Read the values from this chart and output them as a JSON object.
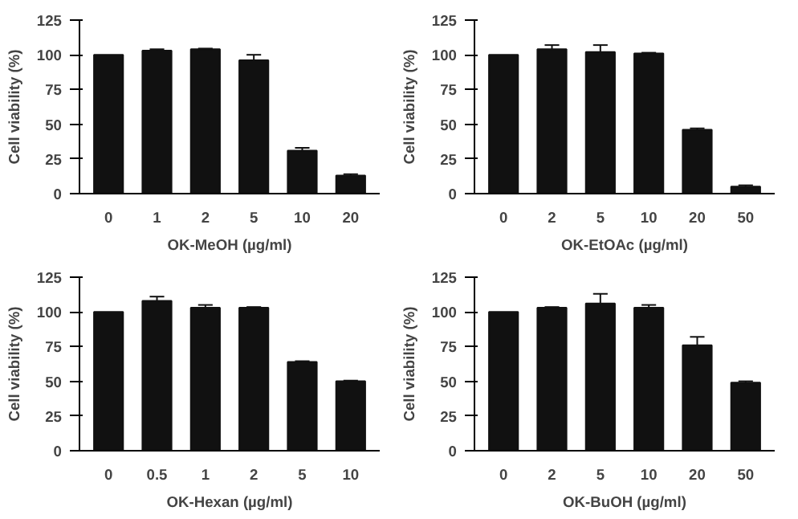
{
  "chart_data": [
    {
      "type": "bar",
      "xlabel": "OK-MeOH (µg/ml)",
      "ylabel": "Cell viability (%)",
      "categories": [
        "0",
        "1",
        "2",
        "5",
        "10",
        "20"
      ],
      "values": [
        100,
        103,
        104,
        96,
        31,
        13
      ],
      "errors": [
        null,
        [
          103,
          104
        ],
        [
          104,
          104.5
        ],
        [
          96,
          100
        ],
        [
          31,
          33
        ],
        [
          13,
          14
        ]
      ],
      "color": "#111111",
      "ylim": [
        0,
        125
      ],
      "yticks": [
        0,
        25,
        50,
        75,
        100,
        125
      ]
    },
    {
      "type": "bar",
      "xlabel": "OK-EtOAc (µg/ml)",
      "ylabel": "Cell viability (%)",
      "categories": [
        "0",
        "2",
        "5",
        "10",
        "20",
        "50"
      ],
      "values": [
        100,
        104,
        102,
        101,
        46,
        5
      ],
      "errors": [
        null,
        [
          104,
          107
        ],
        [
          102,
          107
        ],
        [
          101,
          101.5
        ],
        [
          46,
          47
        ],
        [
          5,
          6
        ]
      ],
      "color": "#111111",
      "ylim": [
        0,
        125
      ],
      "yticks": [
        0,
        25,
        50,
        75,
        100,
        125
      ]
    },
    {
      "type": "bar",
      "xlabel": "OK-Hexan (µg/ml)",
      "ylabel": "Cell viability (%)",
      "categories": [
        "0",
        "0.5",
        "1",
        "2",
        "5",
        "10"
      ],
      "values": [
        100,
        108,
        103,
        103,
        64,
        50
      ],
      "errors": [
        null,
        [
          108,
          111
        ],
        [
          103,
          105
        ],
        [
          103,
          103.5
        ],
        [
          64,
          64.5
        ],
        [
          50,
          50.5
        ]
      ],
      "color": "#111111",
      "ylim": [
        0,
        125
      ],
      "yticks": [
        0,
        25,
        50,
        75,
        100,
        125
      ]
    },
    {
      "type": "bar",
      "xlabel": "OK-BuOH (µg/ml)",
      "ylabel": "Cell viability (%)",
      "categories": [
        "0",
        "2",
        "5",
        "10",
        "20",
        "50"
      ],
      "values": [
        100,
        103,
        106,
        103,
        76,
        49
      ],
      "errors": [
        null,
        [
          103,
          103.5
        ],
        [
          106,
          113
        ],
        [
          103,
          105
        ],
        [
          76,
          82
        ],
        [
          49,
          50
        ]
      ],
      "color": "#111111",
      "ylim": [
        0,
        125
      ],
      "yticks": [
        0,
        25,
        50,
        75,
        100,
        125
      ]
    }
  ]
}
